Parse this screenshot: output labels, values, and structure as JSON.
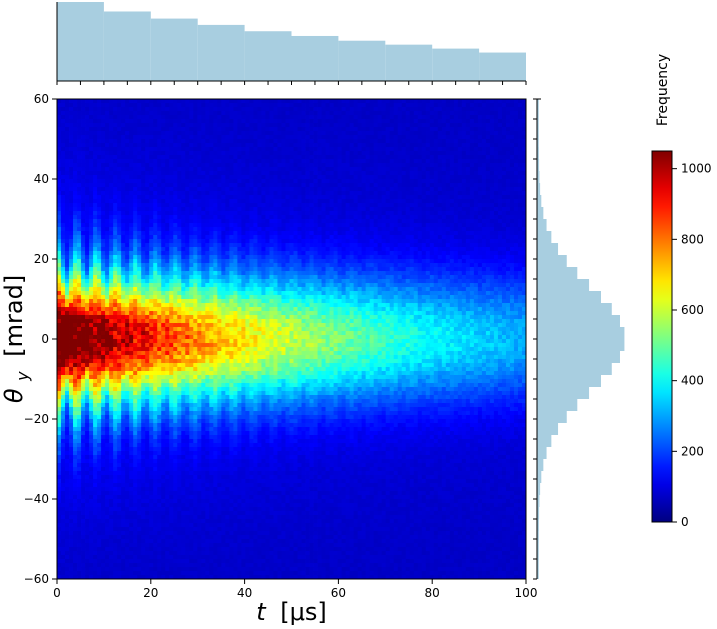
{
  "chart_data": {
    "type": "heatmap",
    "title": "",
    "xlabel_var": "t",
    "xlabel_unit": "[μs]",
    "ylabel_var": "θ",
    "ylabel_sub": "y",
    "ylabel_unit": "[mrad]",
    "xlim": [
      0,
      100
    ],
    "ylim": [
      -60,
      60
    ],
    "x_ticks": [
      0,
      20,
      40,
      60,
      80,
      100
    ],
    "y_ticks": [
      -60,
      -40,
      -20,
      0,
      20,
      40,
      60
    ],
    "grid": false,
    "colormap": "jet",
    "colorbar": {
      "label": "Frequency",
      "range": [
        0,
        1050
      ],
      "ticks": [
        0,
        200,
        400,
        600,
        800,
        1000
      ]
    },
    "distribution_model": {
      "peak_frequency": 1050,
      "peak_theta_mrad": 0,
      "oscillation_period_us": 4.2,
      "oscillation_decay_us": 30,
      "envelope_decay_us": 64,
      "background_frequency": 70
    },
    "marginal_top": {
      "type": "histogram",
      "bin_edges_us": [
        0,
        10,
        20,
        30,
        40,
        50,
        60,
        70,
        80,
        90,
        100
      ],
      "relative_heights": [
        1.0,
        0.88,
        0.79,
        0.71,
        0.63,
        0.57,
        0.51,
        0.46,
        0.41,
        0.36
      ],
      "color": "#a8cee0"
    },
    "marginal_right": {
      "type": "histogram",
      "bin_width_mrad": 3,
      "sigma_mrad": 13,
      "tail_fraction": 0.02,
      "color": "#a8cee0"
    }
  }
}
